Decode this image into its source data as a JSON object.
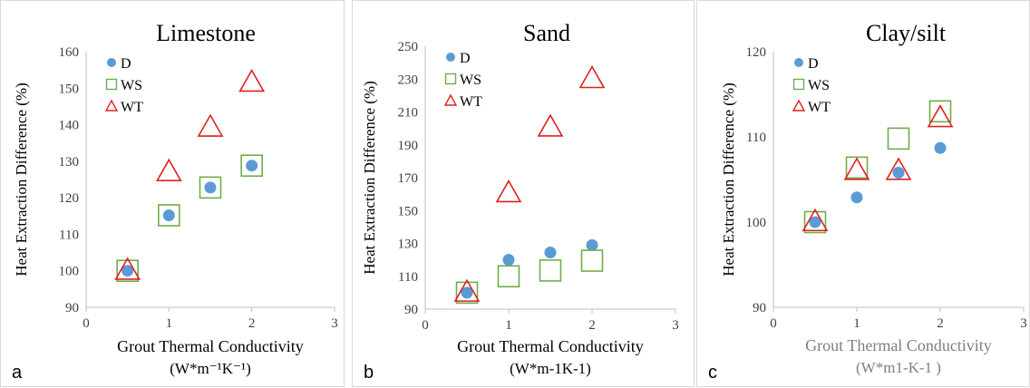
{
  "chart_data": [
    {
      "type": "scatter",
      "panel_letter": "a",
      "title": "Limestone",
      "xlabel": "Grout Thermal Conductivity",
      "xunit": "(W*m⁻¹K⁻¹)",
      "ylabel": "Heat Extraction Difference (%)",
      "xlim": [
        0,
        3
      ],
      "ylim": [
        90,
        160
      ],
      "xticks": [
        0,
        1,
        2,
        3
      ],
      "yticks": [
        90,
        100,
        110,
        120,
        130,
        140,
        150,
        160
      ],
      "legend_position": "top-left",
      "series": [
        {
          "name": "D",
          "marker": "circle",
          "color": "#5b9bd5",
          "x": [
            0.5,
            1,
            1.5,
            2
          ],
          "y": [
            100,
            115.2,
            122.8,
            128.8
          ]
        },
        {
          "name": "WS",
          "marker": "square",
          "color": "#70ad47",
          "x": [
            0.5,
            1,
            1.5,
            2
          ],
          "y": [
            100,
            115.2,
            122.8,
            128.8
          ]
        },
        {
          "name": "WT",
          "marker": "triangle",
          "color": "#e02020",
          "x": [
            0.5,
            1,
            1.5,
            2
          ],
          "y": [
            100,
            127,
            139.2,
            151.5
          ]
        }
      ]
    },
    {
      "type": "scatter",
      "panel_letter": "b",
      "title": "Sand",
      "xlabel": "Grout Thermal Conductivity",
      "xunit": "(W*m-1K-1)",
      "ylabel": "Heat Extraction Difference (%)",
      "xlim": [
        0,
        3
      ],
      "ylim": [
        90,
        250
      ],
      "xticks": [
        0,
        1,
        2,
        3
      ],
      "yticks": [
        90,
        110,
        130,
        150,
        170,
        190,
        210,
        230,
        250
      ],
      "legend_position": "top-left",
      "series": [
        {
          "name": "D",
          "marker": "circle",
          "color": "#5b9bd5",
          "x": [
            0.5,
            1,
            1.5,
            2
          ],
          "y": [
            100,
            120,
            124.5,
            129
          ]
        },
        {
          "name": "WS",
          "marker": "square",
          "color": "#70ad47",
          "x": [
            0.5,
            1,
            1.5,
            2
          ],
          "y": [
            100,
            110,
            113.5,
            119.5
          ]
        },
        {
          "name": "WT",
          "marker": "triangle",
          "color": "#e02020",
          "x": [
            0.5,
            1,
            1.5,
            2
          ],
          "y": [
            100,
            160.5,
            200.5,
            230
          ]
        }
      ]
    },
    {
      "type": "scatter",
      "panel_letter": "c",
      "title": "Clay/silt",
      "xlabel": "Grout Thermal Conductivity",
      "xunit": "(W*m1-K-1 )",
      "ylabel": "Heat Extraction Difference (%)",
      "xlim": [
        0,
        3
      ],
      "ylim": [
        90,
        120
      ],
      "xticks": [
        0,
        1,
        2,
        3
      ],
      "yticks": [
        90,
        100,
        110,
        120
      ],
      "legend_position": "top-left",
      "series": [
        {
          "name": "D",
          "marker": "circle",
          "color": "#5b9bd5",
          "x": [
            0.5,
            1,
            1.5,
            2
          ],
          "y": [
            100,
            102.9,
            105.8,
            108.7
          ]
        },
        {
          "name": "WS",
          "marker": "square",
          "color": "#70ad47",
          "x": [
            0.5,
            1,
            1.5,
            2
          ],
          "y": [
            100,
            106.4,
            109.8,
            113
          ]
        },
        {
          "name": "WT",
          "marker": "triangle",
          "color": "#e02020",
          "x": [
            0.5,
            1,
            1.5,
            2
          ],
          "y": [
            100,
            106,
            106,
            112.2
          ]
        }
      ]
    }
  ]
}
